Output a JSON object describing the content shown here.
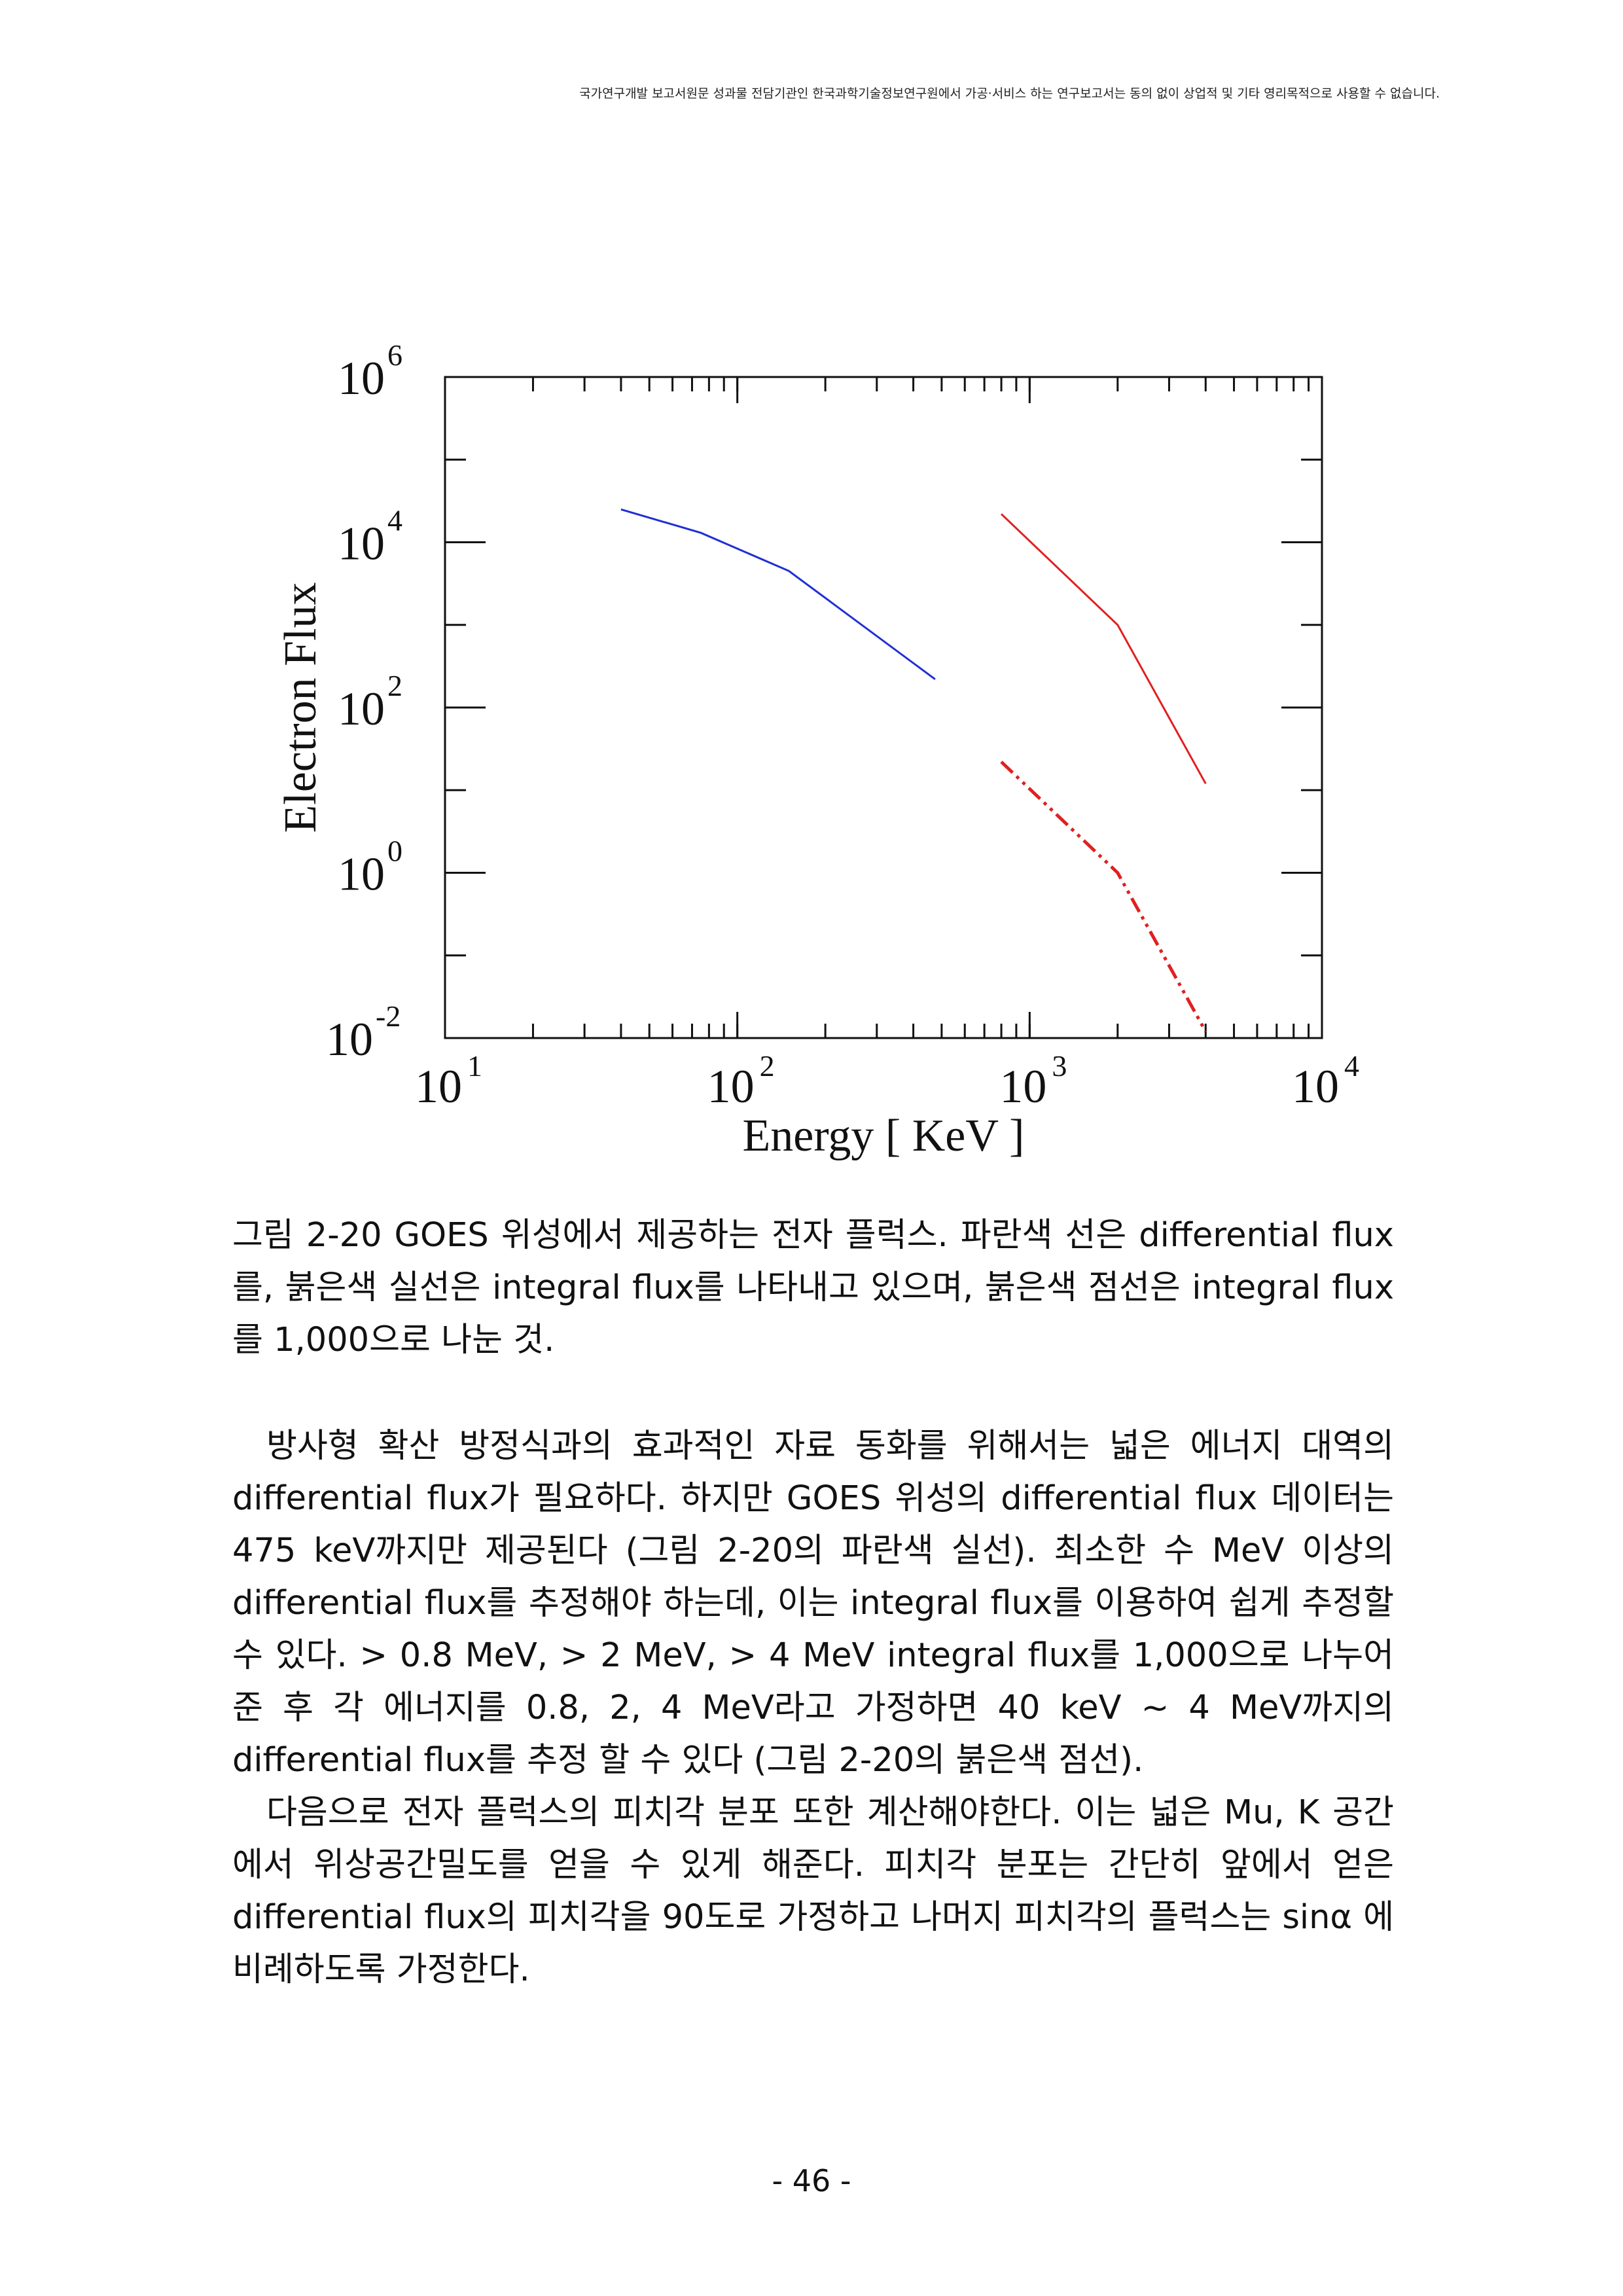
{
  "header": {
    "notice": "국가연구개발 보고서원문 성과물 전담기관인 한국과학기술정보연구원에서 가공·서비스 하는 연구보고서는 동의 없이 상업적 및 기타 영리목적으로 사용할 수 없습니다."
  },
  "chart_data": {
    "type": "line",
    "xlabel": "Energy [ KeV ]",
    "ylabel": "Electron Flux",
    "xscale": "log",
    "yscale": "log",
    "xlim": [
      10,
      10000
    ],
    "ylim": [
      0.01,
      1000000
    ],
    "x_ticks": [
      {
        "base": "10",
        "exp": "1",
        "value": 10
      },
      {
        "base": "10",
        "exp": "2",
        "value": 100
      },
      {
        "base": "10",
        "exp": "3",
        "value": 1000
      },
      {
        "base": "10",
        "exp": "4",
        "value": 10000
      }
    ],
    "y_ticks": [
      {
        "base": "10",
        "exp": "-2",
        "value": 0.01
      },
      {
        "base": "10",
        "exp": "0",
        "value": 1
      },
      {
        "base": "10",
        "exp": "2",
        "value": 100
      },
      {
        "base": "10",
        "exp": "4",
        "value": 10000
      },
      {
        "base": "10",
        "exp": "6",
        "value": 1000000
      }
    ],
    "grid": false,
    "legend": "none",
    "series": [
      {
        "color": "#1f2fd6",
        "style": "solid",
        "points": [
          [
            40,
            25000
          ],
          [
            75,
            13000
          ],
          [
            150,
            4500
          ],
          [
            475,
            220
          ]
        ]
      },
      {
        "color": "#e02020",
        "style": "solid",
        "points": [
          [
            800,
            22000
          ],
          [
            2000,
            1000
          ],
          [
            4000,
            12
          ]
        ]
      },
      {
        "color": "#e02020",
        "style": "dash-dot-dot",
        "points": [
          [
            800,
            22
          ],
          [
            2000,
            1
          ],
          [
            4000,
            0.012
          ]
        ]
      }
    ]
  },
  "caption": "그림 2-20 GOES 위성에서 제공하는 전자 플럭스. 파란색 선은 differential flux를, 붉은색 실선은 integral flux를 나타내고 있으며, 붉은색 점선은 integral flux를 1,000으로 나눈 것.",
  "paragraphs": [
    "방사형 확산 방정식과의 효과적인 자료 동화를 위해서는 넓은 에너지 대역의 differential flux가 필요하다. 하지만 GOES 위성의 differential flux 데이터는 475 keV까지만 제공된다 (그림 2-20의 파란색 실선). 최소한 수 MeV 이상의 differential flux를 추정해야 하는데, 이는 integral flux를 이용하여 쉽게 추정할 수 있다. > 0.8 MeV, > 2 MeV, > 4 MeV integral flux를 1,000으로 나누어 준 후 각 에너지를 0.8, 2, 4 MeV라고 가정하면 40 keV ~ 4 MeV까지의 differential flux를 추정 할 수 있다 (그림 2-20의 붉은색 점선).",
    "다음으로 전자 플럭스의 피치각 분포 또한 계산해야한다. 이는 넓은 Mu, K 공간에서 위상공간밀도를 얻을 수 있게 해준다. 피치각 분포는 간단히 앞에서 얻은 differential flux의 피치각을 90도로 가정하고 나머지 피치각의 플럭스는 sinα 에 비례하도록 가정한다."
  ],
  "page_number": "- 46 -"
}
